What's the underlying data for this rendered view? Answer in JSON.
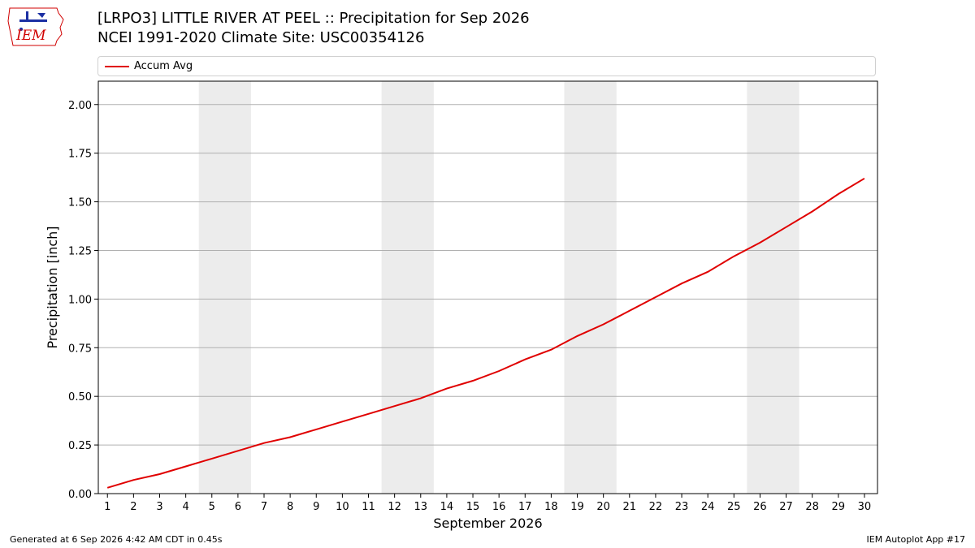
{
  "header": {
    "title_line1": "[LRPO3] LITTLE RIVER AT PEEL :: Precipitation for Sep 2026",
    "title_line2": "NCEI 1991-2020 Climate Site: USC00354126",
    "logo_text": "IEM"
  },
  "legend": {
    "label": "Accum Avg"
  },
  "footer": {
    "left": "Generated at 6 Sep 2026 4:42 AM CDT in 0.45s",
    "right": "IEM Autoplot App #17"
  },
  "colors": {
    "series": "#e00000",
    "weekend_band": "#ececec",
    "grid": "#b0b0b0",
    "logo_blue": "#1b2fa3",
    "logo_red": "#d00000"
  },
  "chart_data": {
    "type": "line",
    "xlabel": "September 2026",
    "ylabel": "Precipitation [inch]",
    "xlim": [
      0.65,
      30.5
    ],
    "ylim": [
      0,
      2.12
    ],
    "x": [
      1,
      2,
      3,
      4,
      5,
      6,
      7,
      8,
      9,
      10,
      11,
      12,
      13,
      14,
      15,
      16,
      17,
      18,
      19,
      20,
      21,
      22,
      23,
      24,
      25,
      26,
      27,
      28,
      29,
      30
    ],
    "y_ticks": [
      0,
      0.25,
      0.5,
      0.75,
      1.0,
      1.25,
      1.5,
      1.75,
      2.0
    ],
    "y_tick_labels": [
      "0.00",
      "0.25",
      "0.50",
      "0.75",
      "1.00",
      "1.25",
      "1.50",
      "1.75",
      "2.00"
    ],
    "x_tick_labels": [
      "1",
      "2",
      "3",
      "4",
      "5",
      "6",
      "7",
      "8",
      "9",
      "10",
      "11",
      "12",
      "13",
      "14",
      "15",
      "16",
      "17",
      "18",
      "19",
      "20",
      "21",
      "22",
      "23",
      "24",
      "25",
      "26",
      "27",
      "28",
      "29",
      "30"
    ],
    "grid": "horizontal",
    "legend_position": "top",
    "weekend_bands": [
      [
        5,
        6
      ],
      [
        12,
        13
      ],
      [
        19,
        20
      ],
      [
        26,
        27
      ]
    ],
    "series": [
      {
        "name": "Accum Avg",
        "values": [
          0.03,
          0.07,
          0.1,
          0.14,
          0.18,
          0.22,
          0.26,
          0.29,
          0.33,
          0.37,
          0.41,
          0.45,
          0.49,
          0.54,
          0.58,
          0.63,
          0.69,
          0.74,
          0.81,
          0.87,
          0.94,
          1.01,
          1.08,
          1.14,
          1.22,
          1.29,
          1.37,
          1.45,
          1.54,
          1.62
        ]
      }
    ]
  }
}
